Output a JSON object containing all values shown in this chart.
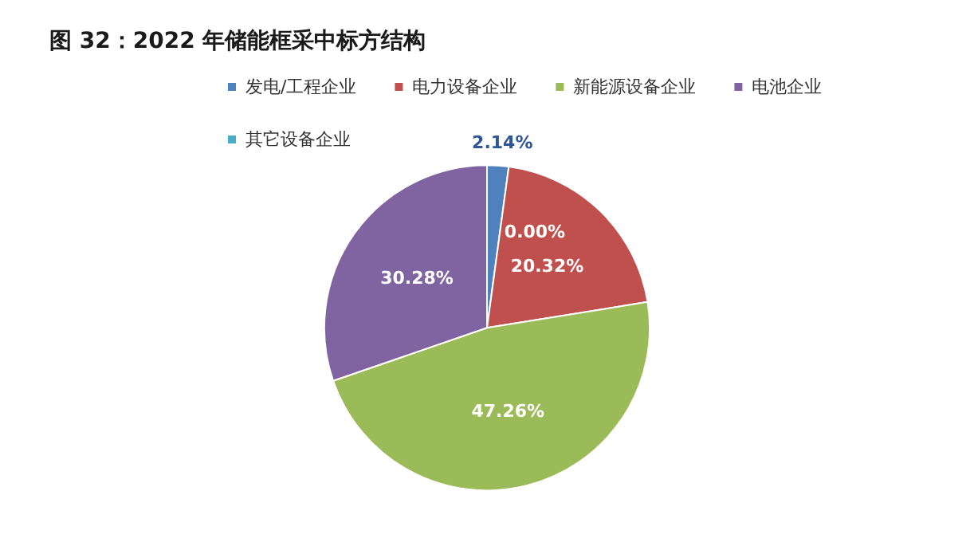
{
  "chart_data": {
    "type": "pie",
    "title": "图 32：2022 年储能框采中标方结构",
    "categories": [
      "发电/工程企业",
      "电力设备企业",
      "新能源设备企业",
      "电池企业",
      "其它设备企业"
    ],
    "values": [
      2.14,
      20.32,
      47.26,
      30.28,
      0
    ],
    "value_labels": [
      "2.14%",
      "20.32%",
      "47.26%",
      "30.28%",
      "0.00%"
    ],
    "colors": [
      "#4f81bd",
      "#c0504d",
      "#9bbb59",
      "#8064a2",
      "#4bacc6"
    ],
    "legend": "top"
  }
}
